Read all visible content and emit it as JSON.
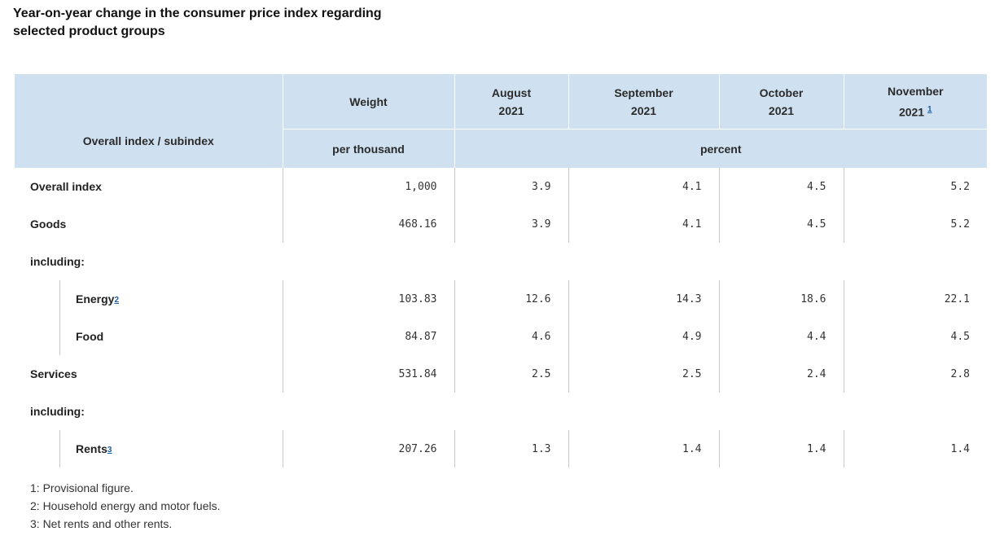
{
  "title": "Year-on-year change in the consumer price index regarding selected product groups",
  "header": {
    "index_col": "Overall index / subindex",
    "weight": "Weight",
    "weight_unit": "per thousand",
    "percent_unit": "percent",
    "months": [
      {
        "month": "August",
        "year": "2021",
        "footnote": ""
      },
      {
        "month": "September",
        "year": "2021",
        "footnote": ""
      },
      {
        "month": "October",
        "year": "2021",
        "footnote": ""
      },
      {
        "month": "November",
        "year": "2021",
        "footnote": "1"
      }
    ]
  },
  "rows": [
    {
      "label": "Overall index",
      "indent": false,
      "footnote": "",
      "values": [
        "1,000",
        "3.9",
        "4.1",
        "4.5",
        "5.2"
      ]
    },
    {
      "label": "Goods",
      "indent": false,
      "footnote": "",
      "values": [
        "468.16",
        "3.9",
        "4.1",
        "4.5",
        "5.2"
      ]
    },
    {
      "label": "including:",
      "indent": false,
      "footnote": "",
      "values": []
    },
    {
      "label": "Energy",
      "indent": true,
      "footnote": "2",
      "values": [
        "103.83",
        "12.6",
        "14.3",
        "18.6",
        "22.1"
      ]
    },
    {
      "label": "Food",
      "indent": true,
      "footnote": "",
      "values": [
        "84.87",
        "4.6",
        "4.9",
        "4.4",
        "4.5"
      ]
    },
    {
      "label": "Services",
      "indent": false,
      "footnote": "",
      "values": [
        "531.84",
        "2.5",
        "2.5",
        "2.4",
        "2.8"
      ]
    },
    {
      "label": "including:",
      "indent": false,
      "footnote": "",
      "values": []
    },
    {
      "label": "Rents",
      "indent": true,
      "footnote": "3",
      "values": [
        "207.26",
        "1.3",
        "1.4",
        "1.4",
        "1.4"
      ]
    }
  ],
  "notes": [
    "1: Provisional figure.",
    "2: Household energy and motor fuels.",
    "3: Net rents and other rents."
  ]
}
